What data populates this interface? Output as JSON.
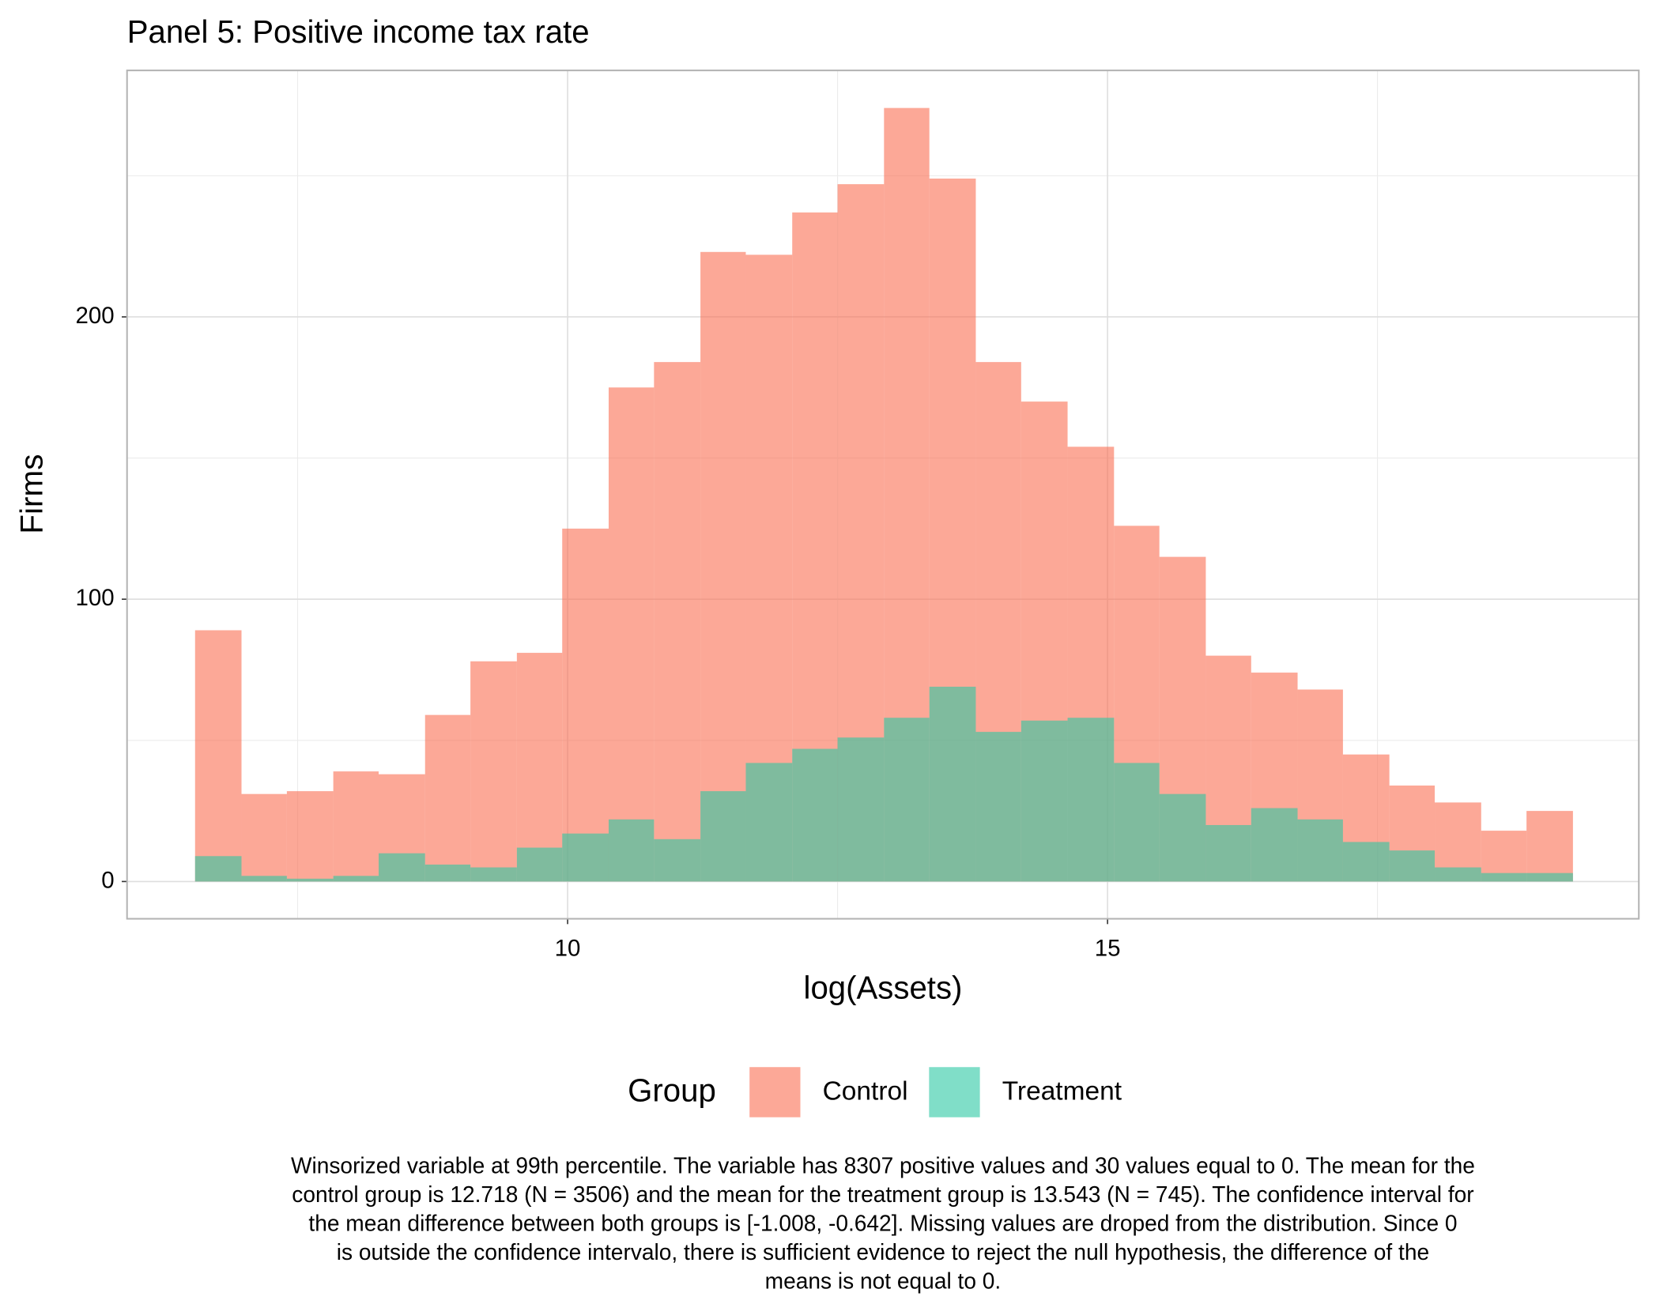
{
  "chart_data": {
    "type": "histogram",
    "title": "Panel 5: Positive income tax rate",
    "x_label": "log(Assets)",
    "y_label": "Firms",
    "bins": [
      6.55,
      6.98,
      7.4,
      7.83,
      8.25,
      8.68,
      9.1,
      9.53,
      9.95,
      10.38,
      10.8,
      11.23,
      11.65,
      12.08,
      12.5,
      12.93,
      13.35,
      13.78,
      14.2,
      14.63,
      15.06,
      15.48,
      15.91,
      16.33,
      16.76,
      17.18,
      17.61,
      18.03,
      18.46,
      18.88,
      19.31
    ],
    "series": [
      {
        "name": "Control",
        "color": "#fa6e52",
        "values": [
          89,
          31,
          32,
          39,
          38,
          59,
          78,
          81,
          125,
          175,
          184,
          223,
          222,
          237,
          247,
          274,
          249,
          184,
          170,
          154,
          126,
          115,
          80,
          74,
          68,
          45,
          34,
          28,
          18,
          25
        ]
      },
      {
        "name": "Treatment",
        "color": "#2bc8a3",
        "values": [
          9,
          2,
          1,
          2,
          10,
          6,
          5,
          12,
          17,
          22,
          15,
          32,
          42,
          47,
          51,
          58,
          69,
          53,
          57,
          58,
          42,
          31,
          20,
          26,
          22,
          14,
          11,
          5,
          3,
          3
        ]
      }
    ],
    "opacity": 0.6,
    "legend_title": "Group",
    "legend_position": "bottom",
    "xlim": [
      5.92,
      19.92
    ],
    "xticks": [
      10,
      15
    ],
    "x_minor_ticks": [
      7.5,
      12.5,
      17.5
    ],
    "ylim": [
      -13.2,
      287.3
    ],
    "yticks": [
      0,
      100,
      200
    ],
    "y_minor_ticks": [
      50,
      150,
      250
    ],
    "grid": true,
    "caption": [
      "Winsorized variable at 99th percentile. The variable has 8307 positive values and 30 values equal to 0. The mean for the",
      "control group is 12.718 (N = 3506) and the mean for the treatment group is 13.543 (N = 745). The confidence interval for",
      "the mean difference between both groups is [-1.008, -0.642]. Missing values are droped from the distribution. Since 0",
      "is outside the confidence intervalo, there is sufficient evidence to reject the null hypothesis, the difference of the",
      "means is not equal to 0."
    ]
  }
}
